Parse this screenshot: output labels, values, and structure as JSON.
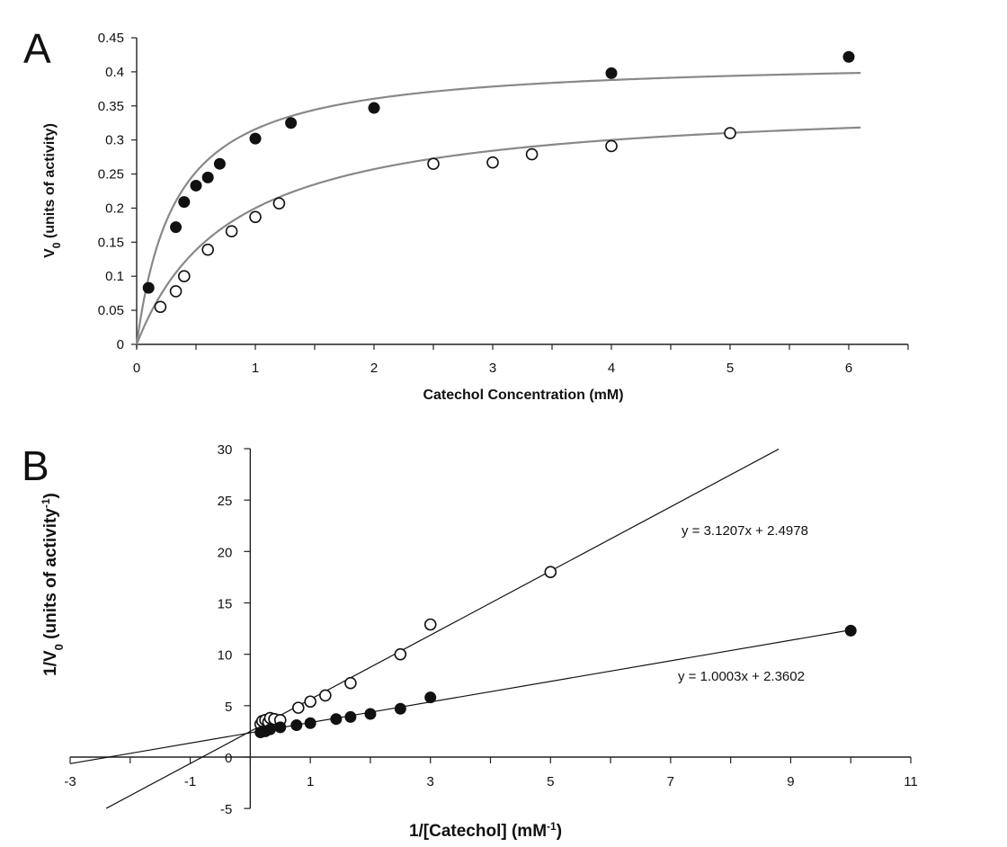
{
  "chart_data": [
    {
      "panel": "A",
      "type": "scatter",
      "xlabel": "Catechol Concentration (mM)",
      "ylabel_main": "V",
      "ylabel_sub": "0",
      "ylabel_rest": " (units of activity)",
      "xlim": [
        0,
        6.5
      ],
      "ylim": [
        0,
        0.45
      ],
      "xticks": [
        0,
        1,
        2,
        3,
        4,
        5,
        6
      ],
      "yticks": [
        0,
        0.05,
        0.1,
        0.15,
        0.2,
        0.25,
        0.3,
        0.35,
        0.4,
        0.45
      ],
      "grid": false,
      "series": [
        {
          "marker": "filled-circle",
          "color": "#111111",
          "x": [
            0.1,
            0.33,
            0.4,
            0.5,
            0.6,
            0.7,
            1.0,
            1.3,
            2.0,
            4.0,
            6.0
          ],
          "y": [
            0.083,
            0.172,
            0.209,
            0.233,
            0.245,
            0.265,
            0.302,
            0.325,
            0.347,
            0.398,
            0.422
          ],
          "fit": {
            "model": "michaelis-menten",
            "vmax": 0.42,
            "km": 0.33,
            "color": "#888888"
          }
        },
        {
          "marker": "open-circle",
          "color": "#111111",
          "x": [
            0.2,
            0.33,
            0.4,
            0.6,
            0.8,
            1.0,
            1.2,
            2.5,
            3.0,
            3.33,
            4.0,
            5.0
          ],
          "y": [
            0.055,
            0.078,
            0.1,
            0.139,
            0.166,
            0.187,
            0.207,
            0.265,
            0.267,
            0.279,
            0.291,
            0.31
          ],
          "fit": {
            "model": "michaelis-menten",
            "vmax": 0.36,
            "km": 0.8,
            "color": "#888888"
          }
        }
      ]
    },
    {
      "panel": "B",
      "type": "scatter",
      "xlabel_main": "1/[Catechol] (mM",
      "xlabel_sup": "-1",
      "xlabel_end": ")",
      "ylabel_main": "1/V",
      "ylabel_sub": "0",
      "ylabel_mid": " (units of activity",
      "ylabel_sup": "-1",
      "ylabel_end": ")",
      "xlim": [
        -3,
        11
      ],
      "ylim": [
        -5,
        30
      ],
      "xticks": [
        -3,
        -1,
        1,
        3,
        5,
        7,
        9,
        11
      ],
      "yticks": [
        -5,
        0,
        5,
        10,
        15,
        20,
        25,
        30
      ],
      "grid": false,
      "series": [
        {
          "marker": "open-circle",
          "color": "#111111",
          "x": [
            0.17,
            0.2,
            0.25,
            0.3,
            0.33,
            0.4,
            0.5,
            0.8,
            1.0,
            1.25,
            1.67,
            2.5,
            3.0,
            5.0
          ],
          "y": [
            3.2,
            3.5,
            3.6,
            3.4,
            3.8,
            3.7,
            3.6,
            4.8,
            5.4,
            6.0,
            7.2,
            10.0,
            12.9,
            18.0
          ],
          "fit": {
            "model": "linear",
            "slope": 3.1207,
            "intercept": 2.4978,
            "x_range": [
              -2.4,
              8.8
            ]
          },
          "equation": "y = 3.1207x + 2.4978"
        },
        {
          "marker": "filled-circle",
          "color": "#111111",
          "x": [
            0.17,
            0.25,
            0.33,
            0.5,
            0.77,
            1.0,
            1.43,
            1.67,
            2.0,
            2.5,
            3.0,
            10.0
          ],
          "y": [
            2.4,
            2.5,
            2.7,
            2.9,
            3.1,
            3.3,
            3.7,
            3.9,
            4.2,
            4.7,
            5.8,
            12.3
          ],
          "fit": {
            "model": "linear",
            "slope": 1.0003,
            "intercept": 2.3602,
            "x_range": [
              -3.0,
              10.0
            ]
          },
          "equation": "y = 1.0003x + 2.3602"
        }
      ]
    }
  ],
  "panels": {
    "A": {
      "letter": "A"
    },
    "B": {
      "letter": "B"
    }
  }
}
